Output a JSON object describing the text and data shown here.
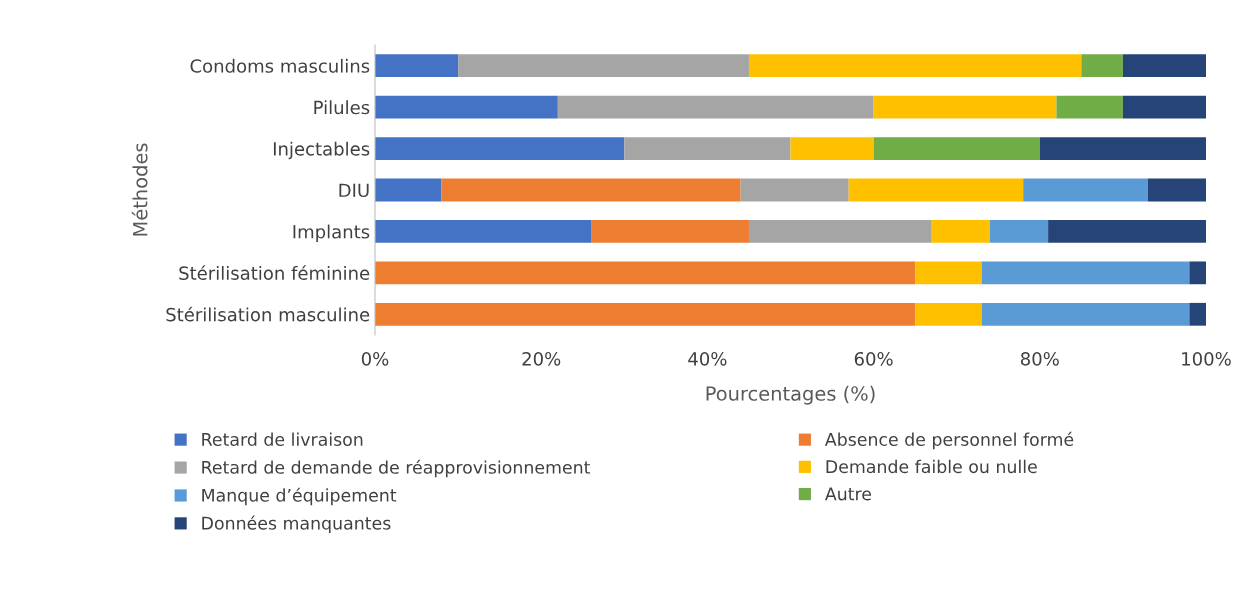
{
  "chart_data": {
    "type": "bar",
    "orientation": "horizontal",
    "stacked": true,
    "xlabel": "Pourcentages (%)",
    "ylabel": "Méthodes",
    "categories": [
      "Condoms masculins",
      "Pilules",
      "Injectables",
      "DIU",
      "Implants",
      "Stérilisation féminine",
      "Stérilisation masculine"
    ],
    "series": [
      {
        "name": "Retard de livraison",
        "color": "#4472c4",
        "values": [
          10,
          22,
          30,
          8,
          26,
          0,
          0
        ]
      },
      {
        "name": "Absence de personnel formé",
        "color": "#ed7d31",
        "values": [
          0,
          0,
          0,
          36,
          19,
          65,
          65
        ]
      },
      {
        "name": "Retard de demande de réapprovisionnement",
        "color": "#a5a5a5",
        "values": [
          35,
          38,
          20,
          13,
          22,
          0,
          0
        ]
      },
      {
        "name": "Demande faible ou nulle",
        "color": "#ffc000",
        "values": [
          40,
          22,
          10,
          21,
          7,
          8,
          8
        ]
      },
      {
        "name": "Manque d’équipement",
        "color": "#5b9bd5",
        "values": [
          0,
          0,
          0,
          15,
          7,
          25,
          25
        ]
      },
      {
        "name": "Autre",
        "color": "#70ad47",
        "values": [
          5,
          8,
          20,
          0,
          0,
          0,
          0
        ]
      },
      {
        "name": "Données manquantes",
        "color": "#264478",
        "values": [
          10,
          10,
          20,
          7,
          19,
          2,
          2
        ]
      }
    ],
    "xlim": [
      0,
      100
    ],
    "xticks": [
      {
        "value": 0,
        "label": "0%"
      },
      {
        "value": 20,
        "label": "20%"
      },
      {
        "value": 40,
        "label": "40%"
      },
      {
        "value": 60,
        "label": "60%"
      },
      {
        "value": 80,
        "label": "80%"
      },
      {
        "value": 100,
        "label": "100%"
      }
    ],
    "grid": false,
    "legend": "bottom"
  }
}
